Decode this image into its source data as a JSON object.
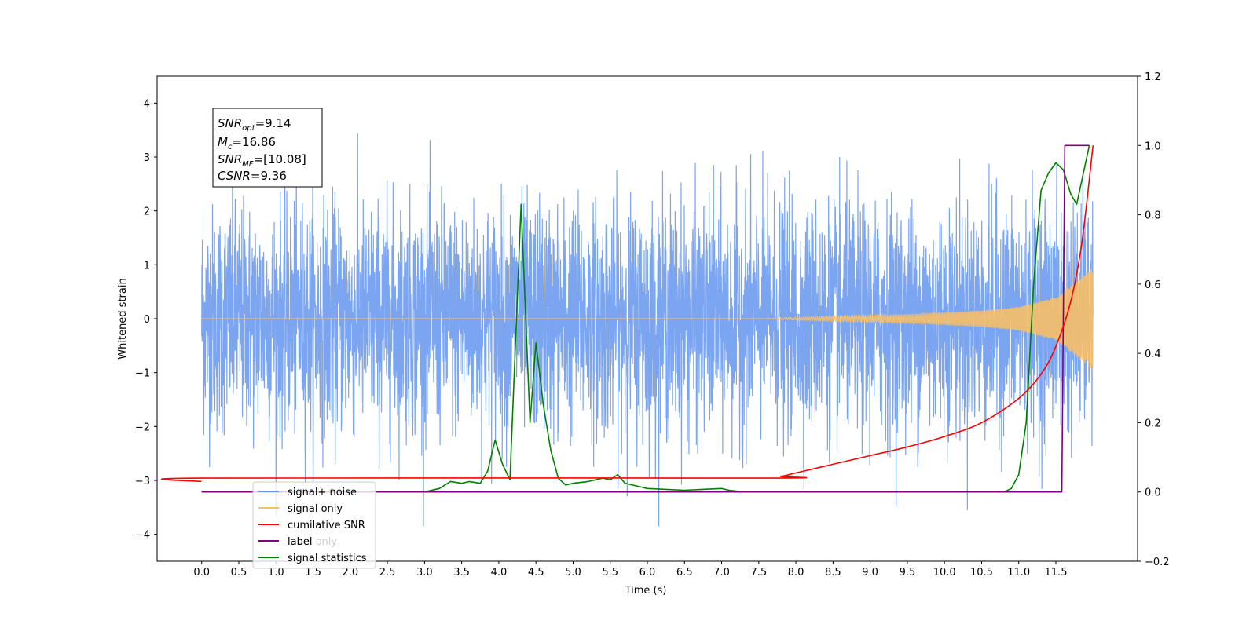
{
  "chart_data": {
    "type": "line",
    "xlabel": "Time (s)",
    "ylabel": "Whitened strain",
    "xlim": [
      -0.6,
      12.6
    ],
    "ylim": [
      -4.5,
      4.5
    ],
    "y2lim": [
      -0.2,
      1.2
    ],
    "x_ticks": [
      "0.0",
      "0.5",
      "1.0",
      "1.5",
      "2.0",
      "2.5",
      "3.0",
      "3.5",
      "4.0",
      "4.5",
      "5.0",
      "5.5",
      "6.0",
      "6.5",
      "7.0",
      "7.5",
      "8.0",
      "8.5",
      "9.0",
      "9.5",
      "10.0",
      "10.5",
      "11.0",
      "11.5"
    ],
    "y_ticks": [
      "4",
      "3",
      "2",
      "1",
      "0",
      "−1",
      "−2",
      "−3",
      "−4"
    ],
    "y2_ticks": [
      "1.2",
      "1.0",
      "0.8",
      "0.6",
      "0.4",
      "0.2",
      "0.0",
      "−0.2"
    ],
    "annotation": {
      "lines": [
        {
          "sym": "SNR",
          "sub": "opt",
          "val": "=9.14"
        },
        {
          "sym": "M",
          "sub": "c",
          "val": "=16.86"
        },
        {
          "sym": "SNR",
          "sub": "MF",
          "val": "=[10.08]"
        },
        {
          "sym": "CSNR",
          "sub": "",
          "val": "=9.36"
        }
      ]
    },
    "legend": {
      "placement": "lower-left",
      "entries": [
        {
          "label": "signal+ noise",
          "color": "#6495ED"
        },
        {
          "label": "signal only",
          "color": "#FFBF60"
        },
        {
          "label": "cumilative SNR",
          "color": "#FF0000"
        },
        {
          "label": "label",
          "color": "#800080"
        },
        {
          "label": "signal statistics",
          "color": "#008000"
        }
      ],
      "hidden_label": "label only"
    },
    "series": [
      {
        "name": "signal+ noise",
        "axis": "left",
        "color": "#6495ED",
        "description_envelope": {
          "x": [
            0.0,
            12.0
          ],
          "y_typical_max": 2.5,
          "y_typical_min": -2.5
        }
      },
      {
        "name": "signal only",
        "axis": "left",
        "color": "#FFBF60",
        "envelope": {
          "x": [
            0.0,
            7.5,
            8.5,
            9.5,
            10.5,
            11.0,
            11.5,
            12.0
          ],
          "amplitude": [
            0.0,
            0.0,
            0.05,
            0.08,
            0.15,
            0.22,
            0.4,
            0.95
          ]
        }
      },
      {
        "name": "cumilative SNR",
        "axis": "right",
        "color": "#FF0000",
        "x": [
          0.0,
          0.02,
          7.5,
          7.8,
          8.0,
          8.5,
          9.0,
          9.5,
          10.0,
          10.5,
          11.0,
          11.3,
          11.5,
          11.7,
          11.85,
          12.0
        ],
        "y": [
          0.03,
          0.04,
          0.04,
          0.045,
          0.055,
          0.08,
          0.105,
          0.13,
          0.16,
          0.2,
          0.27,
          0.34,
          0.42,
          0.55,
          0.72,
          1.0
        ]
      },
      {
        "name": "label",
        "axis": "right",
        "color": "#800080",
        "x": [
          0.0,
          11.58,
          11.62,
          11.95
        ],
        "y": [
          0.0,
          0.0,
          1.0,
          1.0
        ]
      },
      {
        "name": "signal statistics",
        "axis": "right",
        "color": "#008000",
        "x": [
          0.0,
          3.0,
          3.2,
          3.35,
          3.5,
          3.6,
          3.75,
          3.85,
          3.95,
          4.05,
          4.15,
          4.3,
          4.42,
          4.5,
          4.6,
          4.7,
          4.8,
          4.9,
          5.0,
          5.2,
          5.4,
          5.5,
          5.6,
          5.7,
          5.8,
          6.0,
          6.5,
          7.0,
          7.1,
          7.3,
          8.0,
          10.0,
          10.8,
          10.9,
          11.0,
          11.1,
          11.2,
          11.3,
          11.4,
          11.5,
          11.6,
          11.7,
          11.78,
          11.85,
          11.95
        ],
        "y": [
          0.0,
          0.0,
          0.01,
          0.03,
          0.025,
          0.03,
          0.025,
          0.06,
          0.15,
          0.08,
          0.035,
          0.83,
          0.2,
          0.43,
          0.25,
          0.12,
          0.04,
          0.02,
          0.025,
          0.03,
          0.04,
          0.035,
          0.05,
          0.025,
          0.02,
          0.01,
          0.005,
          0.01,
          0.005,
          0.0,
          0.0,
          0.0,
          0.0,
          0.01,
          0.05,
          0.2,
          0.6,
          0.87,
          0.92,
          0.95,
          0.93,
          0.86,
          0.83,
          0.9,
          1.0
        ]
      }
    ]
  }
}
